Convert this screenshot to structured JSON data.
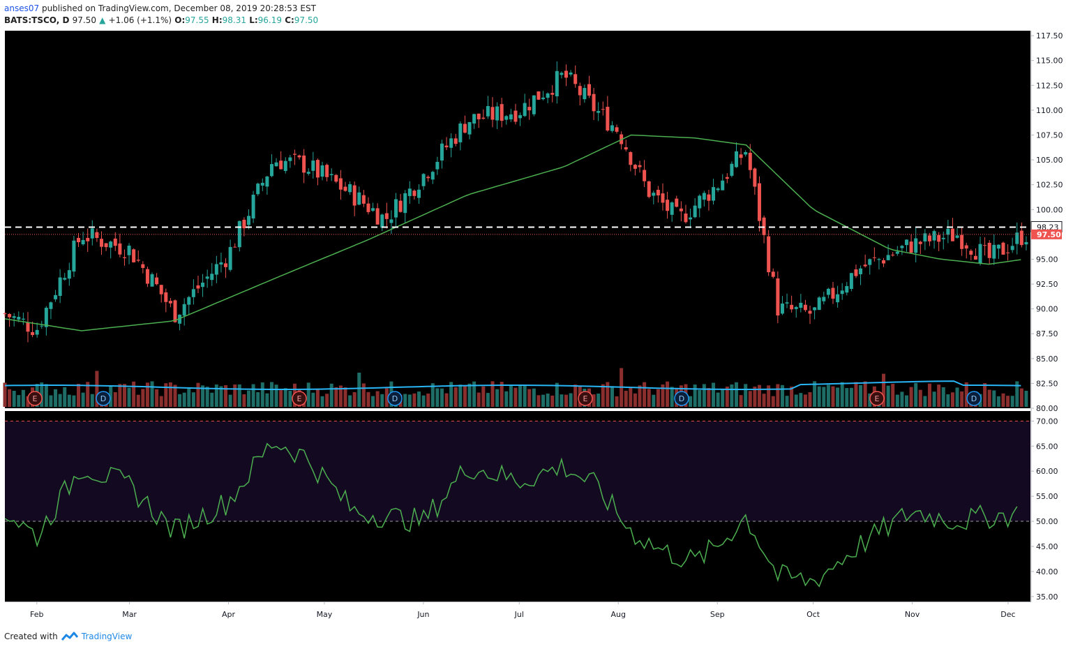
{
  "header": {
    "author": "anses07",
    "published_text": "published on TradingView.com, December 08, 2019 20:28:53 EST",
    "symbol": "BATS:TSCO, D",
    "last": "97.50",
    "change_arrow": "▲",
    "change": "+1.06 (+1.1%)",
    "open_label": "O:",
    "open": "97.55",
    "high_label": "H:",
    "high": "98.31",
    "low_label": "L:",
    "low": "96.19",
    "close_label": "C:",
    "close": "97.50"
  },
  "footer": {
    "created_with": "Created with",
    "brand": "TradingView"
  },
  "colors": {
    "up": "#26a69a",
    "down": "#ef5350",
    "ma": "#4caf50",
    "volume_ma": "#29b6f6",
    "rsi": "#4caf50",
    "background": "#000000",
    "rsi_band": "#130920"
  },
  "chart_data": [
    {
      "type": "candlestick",
      "title": "BATS:TSCO, D",
      "ylim": [
        80,
        118
      ],
      "y_ticks": [
        "117.50",
        "115.00",
        "112.50",
        "110.00",
        "107.50",
        "105.00",
        "102.50",
        "100.00",
        "97.50",
        "95.00",
        "92.50",
        "90.00",
        "87.50",
        "85.00",
        "82.50",
        "80.00"
      ],
      "x_ticks": [
        "Feb",
        "Mar",
        "Apr",
        "May",
        "Jun",
        "Jul",
        "Aug",
        "Sep",
        "Oct",
        "Nov",
        "Dec"
      ],
      "price_line": {
        "value": 98.23,
        "label": "98.23",
        "style": "dashed-white"
      },
      "last_price": {
        "value": 97.5,
        "label": "97.50"
      },
      "series": [
        {
          "name": "close",
          "x": [
            "Jan 22",
            "Feb 1",
            "Feb 15",
            "Mar 1",
            "Mar 10",
            "Mar 15",
            "Apr 1",
            "Apr 15",
            "Apr 25",
            "May 10",
            "May 20",
            "Jun 1",
            "Jun 15",
            "Jul 1",
            "Jul 15",
            "Jul 25",
            "Aug 1",
            "Aug 10",
            "Aug 20",
            "Sep 1",
            "Sep 10",
            "Sep 20",
            "Oct 1",
            "Oct 15",
            "Nov 1",
            "Nov 15",
            "Nov 25",
            "Dec 6"
          ],
          "values": [
            89.5,
            88.0,
            97.5,
            96.0,
            92.0,
            89.5,
            95.5,
            105.0,
            104.5,
            101.5,
            99.0,
            103.5,
            109.0,
            110.0,
            113.5,
            110.0,
            108.0,
            102.0,
            99.0,
            102.5,
            106.0,
            90.0,
            89.5,
            94.0,
            96.5,
            97.5,
            95.0,
            97.5
          ]
        },
        {
          "name": "moving average",
          "x": [
            "Jan 22",
            "Feb 15",
            "Mar 15",
            "Apr 15",
            "May 15",
            "Jun 15",
            "Jul 15",
            "Aug 5",
            "Aug 25",
            "Sep 10",
            "Oct 1",
            "Oct 25",
            "Nov 10",
            "Nov 25",
            "Dec 6"
          ],
          "values": [
            89.0,
            87.8,
            88.8,
            93.0,
            97.0,
            101.5,
            104.3,
            107.5,
            107.2,
            106.5,
            100.0,
            96.0,
            95.0,
            94.5,
            95.0
          ]
        }
      ],
      "events": [
        "E",
        "D",
        "E",
        "D",
        "E",
        "D",
        "E",
        "D"
      ]
    },
    {
      "type": "bar",
      "name": "volume",
      "x_ticks": [
        "Feb",
        "Mar",
        "Apr",
        "May",
        "Jun",
        "Jul",
        "Aug",
        "Sep",
        "Oct",
        "Nov",
        "Dec"
      ]
    },
    {
      "type": "line",
      "name": "RSI",
      "ylim": [
        34,
        72
      ],
      "y_ticks": [
        "70.00",
        "65.00",
        "60.00",
        "55.00",
        "50.00",
        "45.00",
        "40.00",
        "35.00"
      ],
      "band": [
        50,
        70
      ],
      "series": [
        {
          "name": "rsi",
          "x": [
            "Jan 22",
            "Feb 1",
            "Feb 15",
            "Mar 1",
            "Mar 15",
            "Apr 1",
            "Apr 15",
            "Apr 25",
            "May 10",
            "Jun 1",
            "Jun 15",
            "Jul 1",
            "Jul 15",
            "Jul 25",
            "Aug 5",
            "Aug 15",
            "Aug 25",
            "Sep 1",
            "Sep 10",
            "Sep 20",
            "Oct 1",
            "Oct 15",
            "Nov 1",
            "Nov 15",
            "Nov 25",
            "Dec 6"
          ],
          "values": [
            52,
            47,
            61,
            57,
            48,
            54,
            66,
            63,
            52,
            50,
            61,
            58,
            61,
            57,
            48,
            44,
            42,
            45,
            51,
            39,
            38,
            45,
            52,
            50,
            51,
            51.5
          ]
        }
      ]
    }
  ]
}
